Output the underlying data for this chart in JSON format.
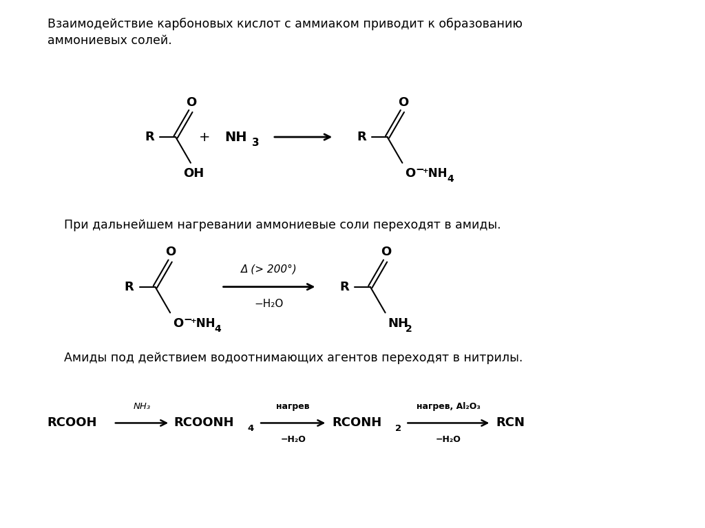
{
  "bg_color": "#ffffff",
  "text_color": "#000000",
  "figsize": [
    10.24,
    7.67
  ],
  "dpi": 100,
  "text1": "Взаимодействие карбоновых кислот с аммиаком приводит к образованию\nаммониевых солей.",
  "text2": "При дальнейшем нагревании аммониевые соли переходят в амиды.",
  "text3": "Амиды под действием водоотнимающих агентов переходят в нитрилы."
}
